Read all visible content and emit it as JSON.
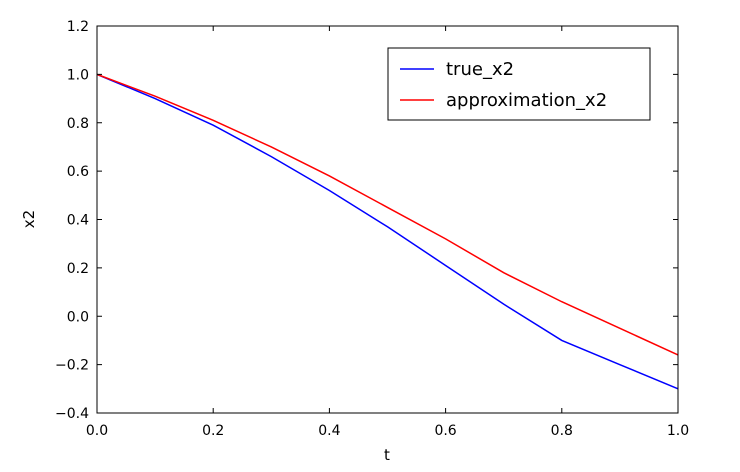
{
  "chart_data": {
    "type": "line",
    "title": "",
    "xlabel": "t",
    "ylabel": "x2",
    "xlim": [
      0.0,
      1.0
    ],
    "ylim": [
      -0.4,
      1.2
    ],
    "xticks": [
      "0.0",
      "0.2",
      "0.4",
      "0.6",
      "0.8",
      "1.0"
    ],
    "yticks": [
      "−0.4",
      "−0.2",
      "0.0",
      "0.2",
      "0.4",
      "0.6",
      "0.8",
      "1.0",
      "1.2"
    ],
    "grid": false,
    "legend_position": "top-right",
    "x": [
      0.0,
      0.1,
      0.2,
      0.3,
      0.4,
      0.5,
      0.6,
      0.7,
      0.8,
      0.9,
      1.0
    ],
    "series": [
      {
        "name": "true_x2",
        "color": "#0000ff",
        "values": [
          1.0,
          0.9,
          0.79,
          0.66,
          0.52,
          0.37,
          0.21,
          0.05,
          -0.1,
          -0.2,
          -0.3
        ]
      },
      {
        "name": "approximation_x2",
        "color": "#ff0000",
        "values": [
          1.0,
          0.91,
          0.81,
          0.7,
          0.58,
          0.45,
          0.32,
          0.18,
          0.06,
          -0.05,
          -0.16
        ]
      }
    ]
  }
}
